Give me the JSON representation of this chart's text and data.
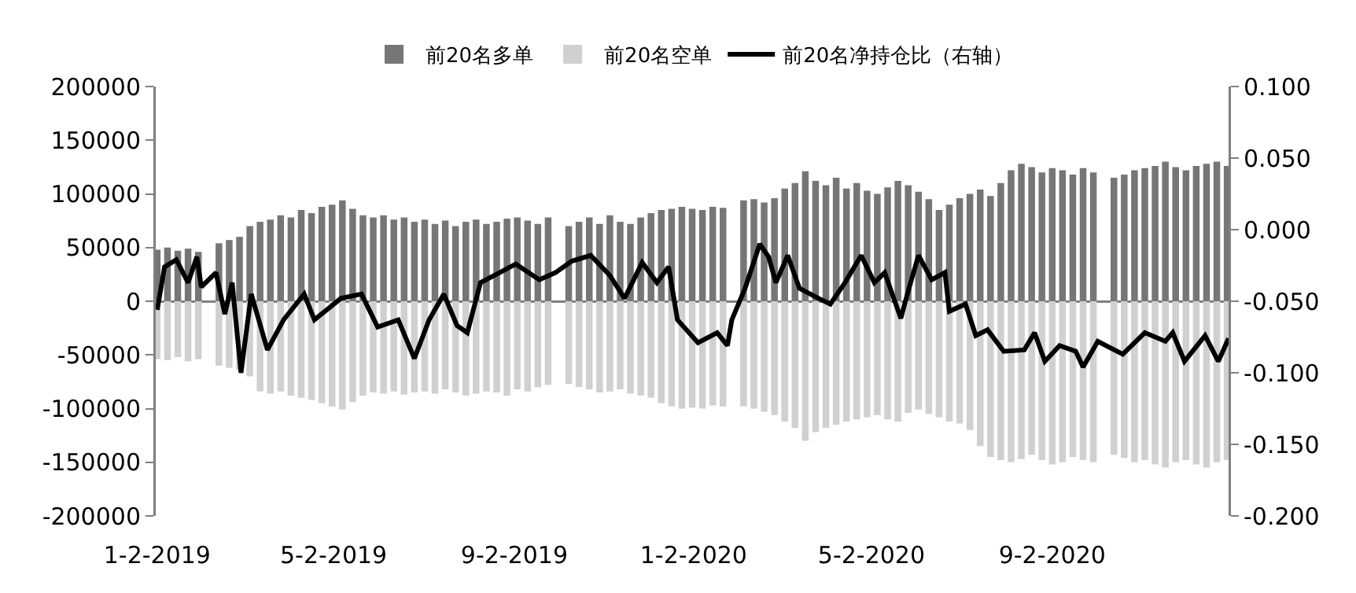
{
  "chart_data": {
    "type": "bar",
    "stacked": true,
    "x": [
      "2019-01-02",
      "2019-01-09",
      "2019-01-16",
      "2019-01-23",
      "2019-01-30",
      "2019-02-06",
      "2019-02-13",
      "2019-02-20",
      "2019-02-27",
      "2019-03-06",
      "2019-03-13",
      "2019-03-20",
      "2019-03-27",
      "2019-04-03",
      "2019-04-10",
      "2019-04-17",
      "2019-04-24",
      "2019-05-01",
      "2019-05-08",
      "2019-05-15",
      "2019-05-22",
      "2019-05-29",
      "2019-06-05",
      "2019-06-12",
      "2019-06-19",
      "2019-06-26",
      "2019-07-03",
      "2019-07-10",
      "2019-07-17",
      "2019-07-24",
      "2019-07-31",
      "2019-08-07",
      "2019-08-14",
      "2019-08-21",
      "2019-08-28",
      "2019-09-04",
      "2019-09-11",
      "2019-09-18",
      "2019-09-25",
      "2019-10-02",
      "2019-10-09",
      "2019-10-16",
      "2019-10-23",
      "2019-10-30",
      "2019-11-06",
      "2019-11-13",
      "2019-11-20",
      "2019-11-27",
      "2019-12-04",
      "2019-12-11",
      "2019-12-18",
      "2019-12-25",
      "2020-01-01",
      "2020-01-08",
      "2020-01-15",
      "2020-01-22",
      "2020-01-29",
      "2020-02-05",
      "2020-02-12",
      "2020-02-19",
      "2020-02-26",
      "2020-03-04",
      "2020-03-11",
      "2020-03-18",
      "2020-03-25",
      "2020-04-01",
      "2020-04-08",
      "2020-04-15",
      "2020-04-22",
      "2020-04-29",
      "2020-05-06",
      "2020-05-13",
      "2020-05-20",
      "2020-05-27",
      "2020-06-03",
      "2020-06-10",
      "2020-06-17",
      "2020-06-24",
      "2020-07-01",
      "2020-07-08",
      "2020-07-15",
      "2020-07-22",
      "2020-07-29",
      "2020-08-05",
      "2020-08-12",
      "2020-08-19",
      "2020-08-26",
      "2020-09-02",
      "2020-09-09",
      "2020-09-16",
      "2020-09-23",
      "2020-09-30",
      "2020-10-07",
      "2020-10-14",
      "2020-10-21",
      "2020-10-28",
      "2020-11-04",
      "2020-11-11",
      "2020-11-18",
      "2020-11-25",
      "2020-12-02",
      "2020-12-09",
      "2020-12-16",
      "2020-12-23",
      "2020-12-30"
    ],
    "series": [
      {
        "name": "前20名多单",
        "color": "#767676",
        "values": [
          48000,
          50000,
          47000,
          49000,
          46000,
          null,
          54000,
          57000,
          60000,
          70000,
          74000,
          76000,
          80000,
          78000,
          85000,
          82000,
          88000,
          90000,
          94000,
          86000,
          80000,
          78000,
          80000,
          76000,
          78000,
          74000,
          76000,
          72000,
          75000,
          70000,
          74000,
          76000,
          72000,
          74000,
          77000,
          78000,
          75000,
          72000,
          78000,
          null,
          70000,
          74000,
          78000,
          72000,
          80000,
          74000,
          72000,
          78000,
          82000,
          85000,
          86000,
          88000,
          86000,
          85000,
          88000,
          87000,
          null,
          94000,
          95000,
          92000,
          96000,
          105000,
          110000,
          121000,
          112000,
          108000,
          115000,
          105000,
          110000,
          103000,
          100000,
          106000,
          112000,
          108000,
          102000,
          95000,
          85000,
          90000,
          96000,
          100000,
          104000,
          98000,
          110000,
          122000,
          128000,
          125000,
          120000,
          124000,
          122000,
          118000,
          124000,
          120000,
          null,
          115000,
          118000,
          122000,
          124000,
          126000,
          130000,
          125000,
          122000,
          126000,
          128000,
          130000,
          126000
        ]
      },
      {
        "name": "前20名空单",
        "color": "#d0d0d0",
        "values": [
          -54000,
          -55000,
          -52000,
          -56000,
          -54000,
          null,
          -60000,
          -62000,
          -64000,
          -70000,
          -84000,
          -86000,
          -84000,
          -88000,
          -90000,
          -92000,
          -95000,
          -98000,
          -101000,
          -94000,
          -88000,
          -85000,
          -86000,
          -84000,
          -87000,
          -85000,
          -84000,
          -86000,
          -82000,
          -85000,
          -88000,
          -86000,
          -84000,
          -85000,
          -88000,
          -82000,
          -84000,
          -80000,
          -78000,
          null,
          -77000,
          -80000,
          -82000,
          -85000,
          -84000,
          -82000,
          -86000,
          -88000,
          -90000,
          -95000,
          -98000,
          -100000,
          -99000,
          -100000,
          -97000,
          -98000,
          null,
          -98000,
          -100000,
          -103000,
          -106000,
          -112000,
          -118000,
          -130000,
          -122000,
          -118000,
          -115000,
          -112000,
          -110000,
          -108000,
          -106000,
          -110000,
          -112000,
          -104000,
          -101000,
          -105000,
          -108000,
          -112000,
          -114000,
          -120000,
          -135000,
          -145000,
          -148000,
          -150000,
          -147000,
          -143000,
          -148000,
          -152000,
          -150000,
          -145000,
          -148000,
          -150000,
          null,
          -143000,
          -146000,
          -150000,
          -148000,
          -152000,
          -155000,
          -150000,
          -148000,
          -152000,
          -155000,
          -150000,
          -148000
        ]
      },
      {
        "name": "前20名净持仓比（右轴）",
        "type": "line",
        "axis": "y2",
        "color": "#000000",
        "x": [
          "2019-01-02",
          "2019-01-07",
          "2019-01-15",
          "2019-01-23",
          "2019-01-29",
          "2019-02-01",
          "2019-02-11",
          "2019-02-17",
          "2019-02-22",
          "2019-02-28",
          "2019-03-07",
          "2019-03-18",
          "2019-03-29",
          "2019-04-12",
          "2019-04-19",
          "2019-05-07",
          "2019-05-21",
          "2019-06-01",
          "2019-06-15",
          "2019-06-26",
          "2019-07-06",
          "2019-07-16",
          "2019-07-25",
          "2019-08-01",
          "2019-08-10",
          "2019-08-23",
          "2019-09-03",
          "2019-09-19",
          "2019-09-30",
          "2019-10-11",
          "2019-10-24",
          "2019-11-06",
          "2019-11-16",
          "2019-11-28",
          "2019-12-08",
          "2019-12-16",
          "2019-12-22",
          "2020-01-05",
          "2020-01-18",
          "2020-01-25",
          "2020-01-28",
          "2020-02-06",
          "2020-02-16",
          "2020-02-22",
          "2020-02-27",
          "2020-03-06",
          "2020-03-14",
          "2020-03-27",
          "2020-04-04",
          "2020-04-14",
          "2020-04-25",
          "2020-05-04",
          "2020-05-11",
          "2020-05-22",
          "2020-05-27",
          "2020-06-03",
          "2020-06-12",
          "2020-06-21",
          "2020-06-24",
          "2020-07-05",
          "2020-07-12",
          "2020-07-20",
          "2020-07-31",
          "2020-08-14",
          "2020-08-21",
          "2020-08-28",
          "2020-09-07",
          "2020-09-18",
          "2020-09-23",
          "2020-10-03",
          "2020-10-20",
          "2020-11-04",
          "2020-11-18",
          "2020-11-23",
          "2020-12-01",
          "2020-12-15",
          "2020-12-24",
          "2020-12-31"
        ],
        "values": [
          -0.056,
          -0.026,
          -0.021,
          -0.037,
          -0.019,
          -0.04,
          -0.03,
          -0.059,
          -0.037,
          -0.1,
          -0.045,
          -0.084,
          -0.063,
          -0.045,
          -0.063,
          -0.048,
          -0.045,
          -0.068,
          -0.063,
          -0.09,
          -0.063,
          -0.045,
          -0.067,
          -0.072,
          -0.037,
          -0.03,
          -0.024,
          -0.035,
          -0.03,
          -0.022,
          -0.018,
          -0.032,
          -0.048,
          -0.023,
          -0.037,
          -0.026,
          -0.063,
          -0.079,
          -0.072,
          -0.081,
          -0.063,
          -0.041,
          -0.01,
          -0.019,
          -0.037,
          -0.018,
          -0.041,
          -0.048,
          -0.052,
          -0.037,
          -0.018,
          -0.037,
          -0.03,
          -0.062,
          -0.043,
          -0.018,
          -0.035,
          -0.03,
          -0.057,
          -0.052,
          -0.074,
          -0.07,
          -0.085,
          -0.084,
          -0.072,
          -0.092,
          -0.081,
          -0.085,
          -0.096,
          -0.078,
          -0.087,
          -0.072,
          -0.078,
          -0.072,
          -0.092,
          -0.074,
          -0.092,
          -0.076
        ]
      }
    ],
    "xlim": [
      "2019-01-01",
      "2020-12-31"
    ],
    "xticks": [
      {
        "value": "2019-01-02",
        "label": "1-2-2019"
      },
      {
        "value": "2019-05-02",
        "label": "5-2-2019"
      },
      {
        "value": "2019-09-02",
        "label": "9-2-2019"
      },
      {
        "value": "2020-01-02",
        "label": "1-2-2020"
      },
      {
        "value": "2020-05-02",
        "label": "5-2-2020"
      },
      {
        "value": "2020-09-02",
        "label": "9-2-2020"
      }
    ],
    "ylim": [
      -200000,
      200000
    ],
    "yticks": [
      -200000,
      -150000,
      -100000,
      -50000,
      0,
      50000,
      100000,
      150000,
      200000
    ],
    "y2lim": [
      -0.2,
      0.1
    ],
    "y2ticks": [
      {
        "value": -0.2,
        "label": "-0.200"
      },
      {
        "value": -0.15,
        "label": "-0.150"
      },
      {
        "value": -0.1,
        "label": "-0.100"
      },
      {
        "value": -0.05,
        "label": "-0.050"
      },
      {
        "value": 0,
        "label": "0.000"
      },
      {
        "value": 0.05,
        "label": "0.050"
      },
      {
        "value": 0.1,
        "label": "0.100"
      }
    ],
    "legend": "top"
  }
}
